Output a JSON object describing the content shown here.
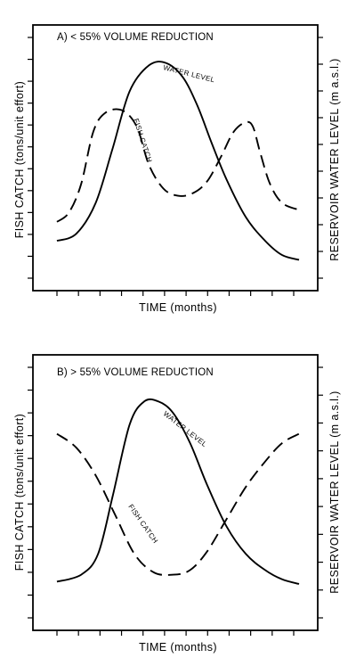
{
  "chart_data": [
    {
      "type": "line",
      "title": "A) < 55% VOLUME REDUCTION",
      "xlabel": "TIME (months)",
      "ylabel_left": "FISH CATCH (tons/unit effort)",
      "ylabel_right": "RESERVOIR WATER LEVEL (m a.s.l.)",
      "x_ticks": 12,
      "y_ticks_left": 12,
      "y_ticks_right": 10,
      "xlim": [
        0,
        1
      ],
      "ylim": [
        0,
        1
      ],
      "series": [
        {
          "name": "WATER LEVEL",
          "style": "solid",
          "x": [
            0.0,
            0.08,
            0.16,
            0.23,
            0.3,
            0.38,
            0.45,
            0.52,
            0.58,
            0.64,
            0.7,
            0.78,
            0.86,
            0.93,
            1.0
          ],
          "y": [
            0.18,
            0.21,
            0.34,
            0.57,
            0.81,
            0.92,
            0.93,
            0.87,
            0.75,
            0.59,
            0.44,
            0.28,
            0.18,
            0.12,
            0.1
          ]
        },
        {
          "name": "FISH CATCH",
          "style": "dashed",
          "x": [
            0.0,
            0.05,
            0.1,
            0.15,
            0.2,
            0.27,
            0.33,
            0.38,
            0.44,
            0.5,
            0.56,
            0.62,
            0.68,
            0.73,
            0.78,
            0.81,
            0.84,
            0.88,
            0.93,
            1.0
          ],
          "y": [
            0.26,
            0.3,
            0.42,
            0.64,
            0.72,
            0.73,
            0.66,
            0.5,
            0.4,
            0.37,
            0.38,
            0.43,
            0.54,
            0.64,
            0.68,
            0.66,
            0.55,
            0.42,
            0.34,
            0.31
          ]
        }
      ]
    },
    {
      "type": "line",
      "title": "B) > 55% VOLUME REDUCTION",
      "xlabel": "TIME (months)",
      "ylabel_left": "FISH CATCH (tons/unit effort)",
      "ylabel_right": "RESERVOIR WATER LEVEL (m a.s.l.)",
      "x_ticks": 12,
      "y_ticks_left": 12,
      "y_ticks_right": 10,
      "xlim": [
        0,
        1
      ],
      "ylim": [
        0,
        1
      ],
      "series": [
        {
          "name": "WATER LEVEL",
          "style": "solid",
          "x": [
            0.0,
            0.1,
            0.17,
            0.23,
            0.3,
            0.36,
            0.42,
            0.48,
            0.55,
            0.62,
            0.7,
            0.78,
            0.86,
            0.93,
            1.0
          ],
          "y": [
            0.18,
            0.21,
            0.3,
            0.55,
            0.86,
            0.96,
            0.96,
            0.91,
            0.78,
            0.6,
            0.42,
            0.3,
            0.23,
            0.19,
            0.17
          ]
        },
        {
          "name": "FISH CATCH",
          "style": "dashed",
          "x": [
            0.0,
            0.08,
            0.16,
            0.24,
            0.32,
            0.4,
            0.48,
            0.55,
            0.62,
            0.7,
            0.78,
            0.86,
            0.93,
            1.0
          ],
          "y": [
            0.82,
            0.76,
            0.64,
            0.47,
            0.3,
            0.22,
            0.21,
            0.23,
            0.31,
            0.45,
            0.59,
            0.7,
            0.78,
            0.82
          ]
        }
      ]
    }
  ]
}
